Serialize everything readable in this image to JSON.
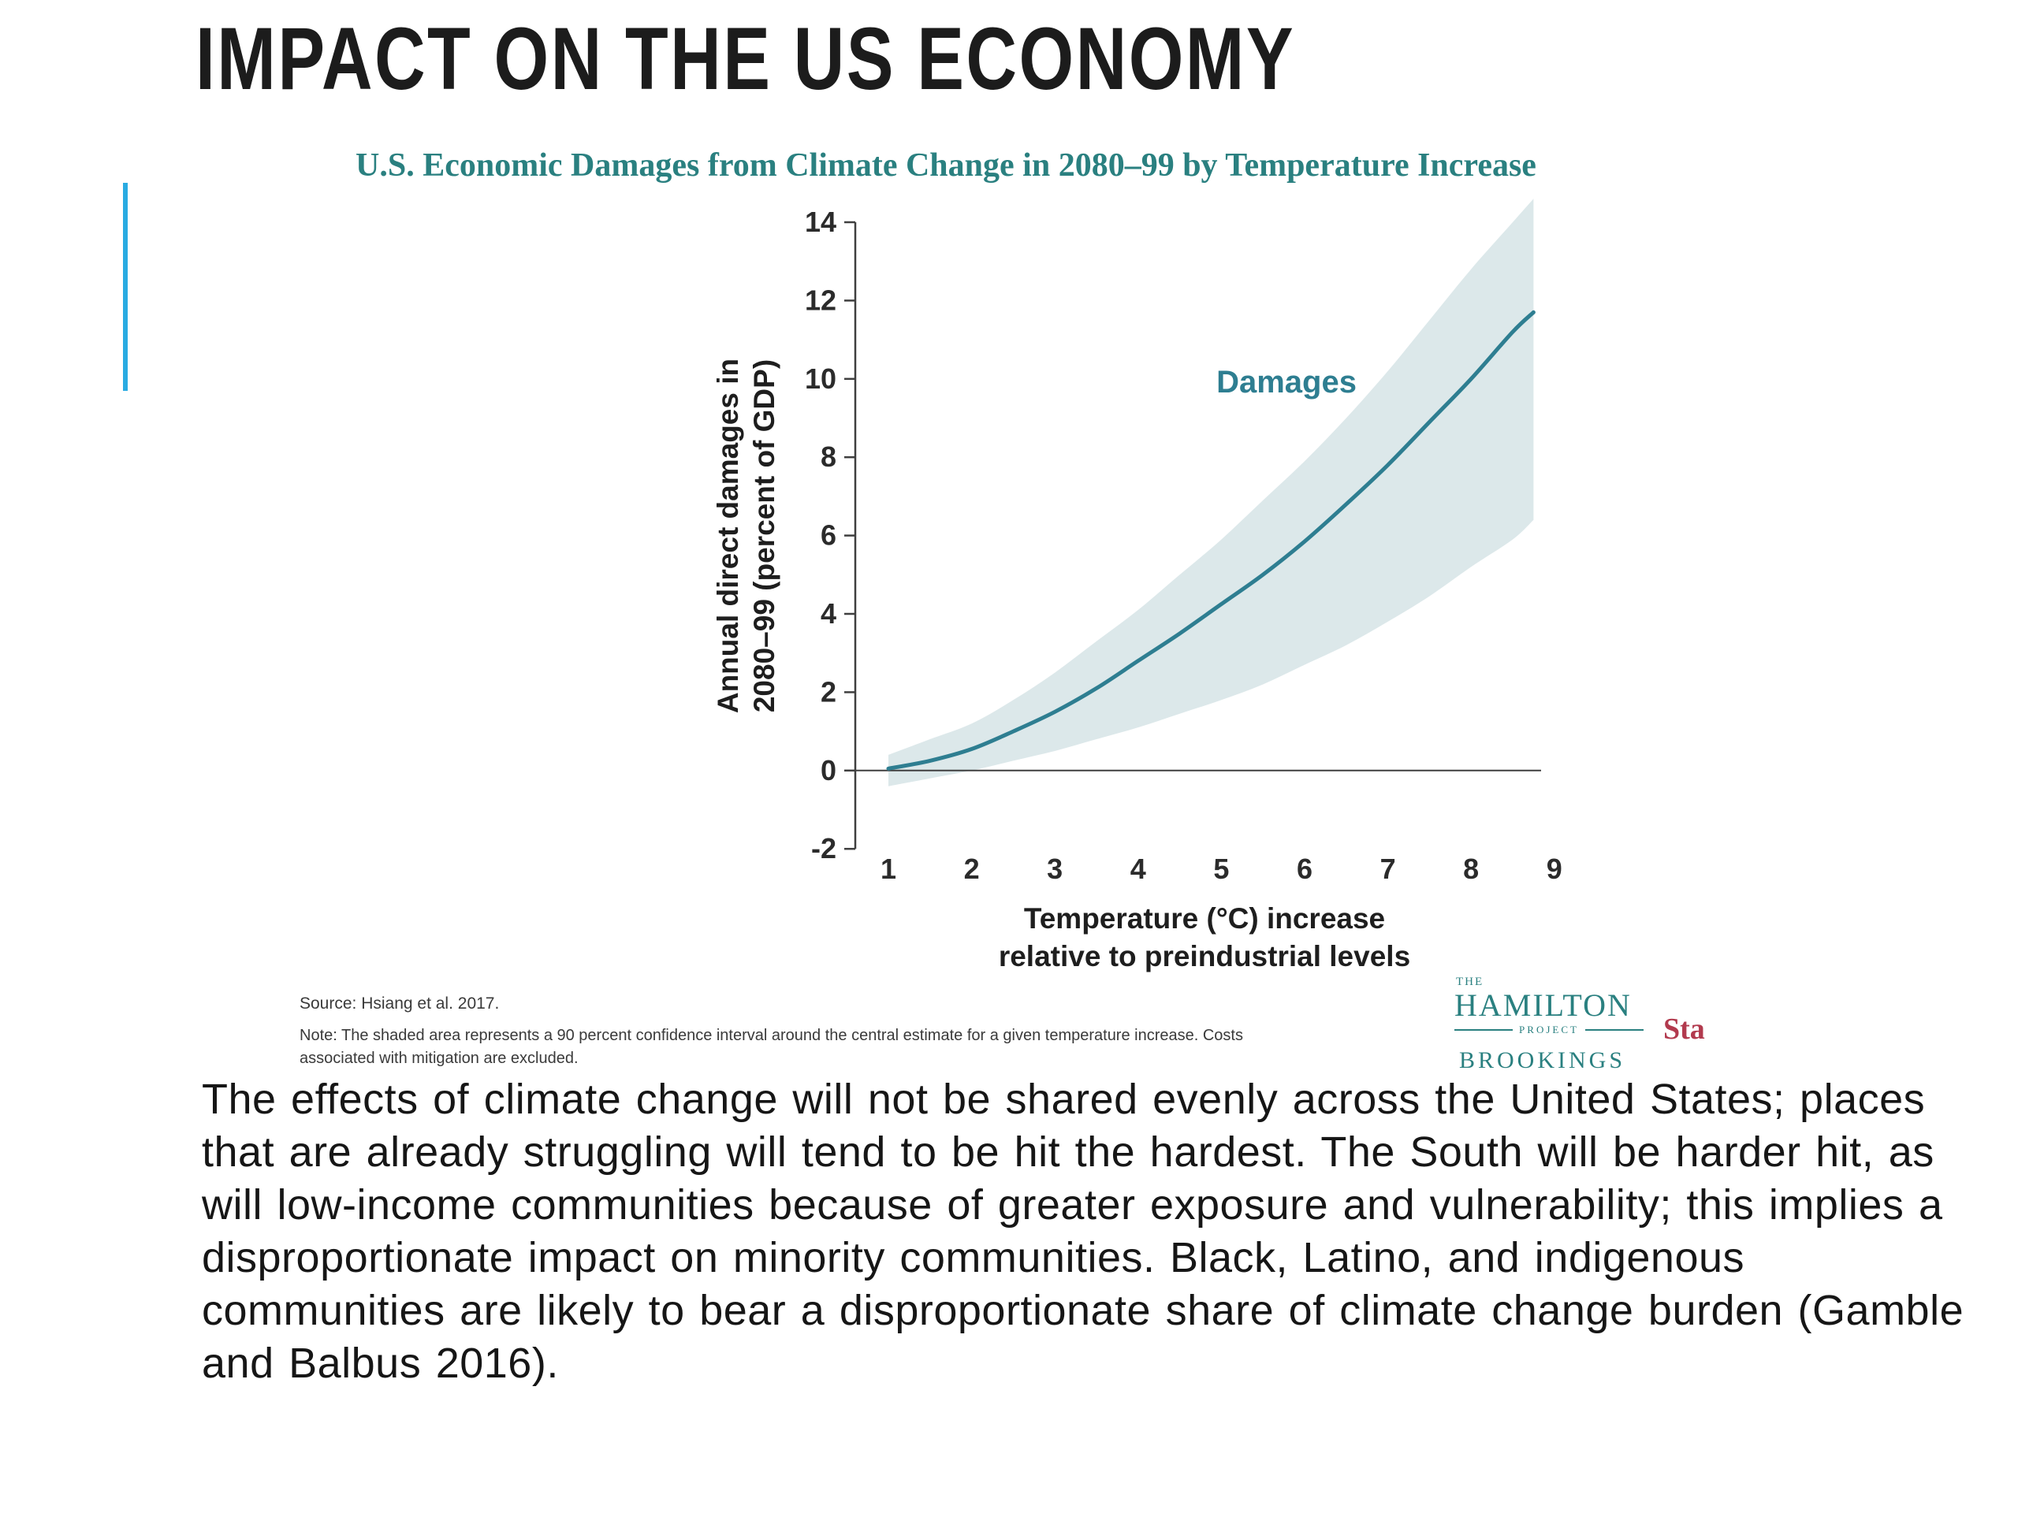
{
  "slide": {
    "title": "IMPACT ON THE US ECONOMY",
    "body_text": "The effects of climate change will not be shared evenly across the United States; places that are already struggling will tend to be hit the hardest. The South will be harder hit, as will low-income communities because of greater exposure and vulnerability; this implies a disproportionate impact on minority communities. Black, Latino, and indigenous communities are likely to bear a disproportionate share of climate change burden (Gamble and Balbus 2016)."
  },
  "accent_color": "#29abe2",
  "chart_data": {
    "type": "line",
    "title": "U.S. Economic Damages from Climate Change in 2080–99 by Temperature Increase",
    "xlabel_line1": "Temperature (°C) increase",
    "xlabel_line2": "relative to preindustrial levels",
    "ylabel_line1": "Annual direct damages in",
    "ylabel_line2": "2080–99 (percent of GDP)",
    "series_label": "Damages",
    "xticks": [
      1,
      2,
      3,
      4,
      5,
      6,
      7,
      8,
      9
    ],
    "yticks": [
      14,
      12,
      10,
      8,
      6,
      4,
      2,
      0,
      -2
    ],
    "xlim": [
      1,
      9
    ],
    "ylim": [
      -2,
      14
    ],
    "grid": false,
    "legend_position": "inline-label",
    "x": [
      1,
      1.5,
      2,
      2.5,
      3,
      3.5,
      4,
      4.5,
      5,
      5.5,
      6,
      6.5,
      7,
      7.5,
      8,
      8.5,
      8.75
    ],
    "series": [
      {
        "name": "Damages (central estimate)",
        "values": [
          0.05,
          0.25,
          0.55,
          1.0,
          1.5,
          2.1,
          2.8,
          3.5,
          4.25,
          5.0,
          5.85,
          6.8,
          7.8,
          8.9,
          10.0,
          11.2,
          11.7
        ]
      },
      {
        "name": "90% CI upper",
        "values": [
          0.4,
          0.8,
          1.2,
          1.8,
          2.5,
          3.3,
          4.1,
          5.0,
          5.9,
          6.9,
          7.9,
          9.0,
          10.2,
          11.5,
          12.8,
          14.0,
          14.6
        ]
      },
      {
        "name": "90% CI lower",
        "values": [
          -0.4,
          -0.2,
          0.0,
          0.25,
          0.5,
          0.8,
          1.1,
          1.45,
          1.8,
          2.2,
          2.7,
          3.2,
          3.8,
          4.45,
          5.2,
          5.9,
          6.4
        ]
      }
    ],
    "colors": {
      "line": "#2e7e91",
      "band": "#dce8ea",
      "title": "#2a8080",
      "axis": "#3f3f3f"
    },
    "source": "Source: Hsiang et al. 2017.",
    "note": "Note: The shaded area represents a 90 percent confidence interval around the central estimate for a given temperature increase. Costs associated with mitigation are excluded."
  },
  "logo": {
    "the": "THE",
    "hamilton": "HAMILTON",
    "project": "PROJECT",
    "brookings": "BROOKINGS",
    "partial": "Sta",
    "color": "#2a8080"
  }
}
